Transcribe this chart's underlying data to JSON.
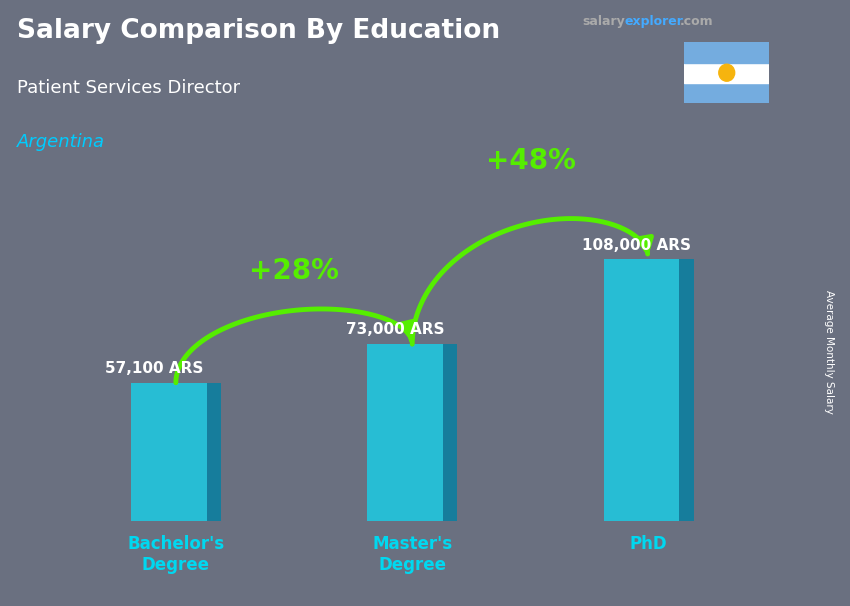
{
  "title": "Salary Comparison By Education",
  "subtitle": "Patient Services Director",
  "country": "Argentina",
  "categories": [
    "Bachelor's\nDegree",
    "Master's\nDegree",
    "PhD"
  ],
  "values": [
    57100,
    73000,
    108000
  ],
  "value_labels": [
    "57,100 ARS",
    "73,000 ARS",
    "108,000 ARS"
  ],
  "bar_color_main": "#1ec8e0",
  "bar_color_side": "#0d7fa0",
  "bar_color_top": "#25d5ee",
  "pct_labels": [
    "+28%",
    "+48%"
  ],
  "pct_color": "#55ee00",
  "bg_color": "#6a7080",
  "title_color": "#ffffff",
  "subtitle_color": "#ffffff",
  "country_color": "#00ccff",
  "xticklabel_color": "#00d8f0",
  "ylabel": "Average Monthly Salary",
  "ylim": [
    0,
    145000
  ],
  "bar_width": 0.38,
  "site_salary_color": "#aaaaaa",
  "site_explorer_color": "#44aaff",
  "site_com_color": "#aaaaaa",
  "flag_colors": [
    "#74acdf",
    "#ffffff",
    "#74acdf"
  ],
  "arrow_lw": 3.5,
  "value_label_color": "#ffffff",
  "value_label_fontsize": 11
}
